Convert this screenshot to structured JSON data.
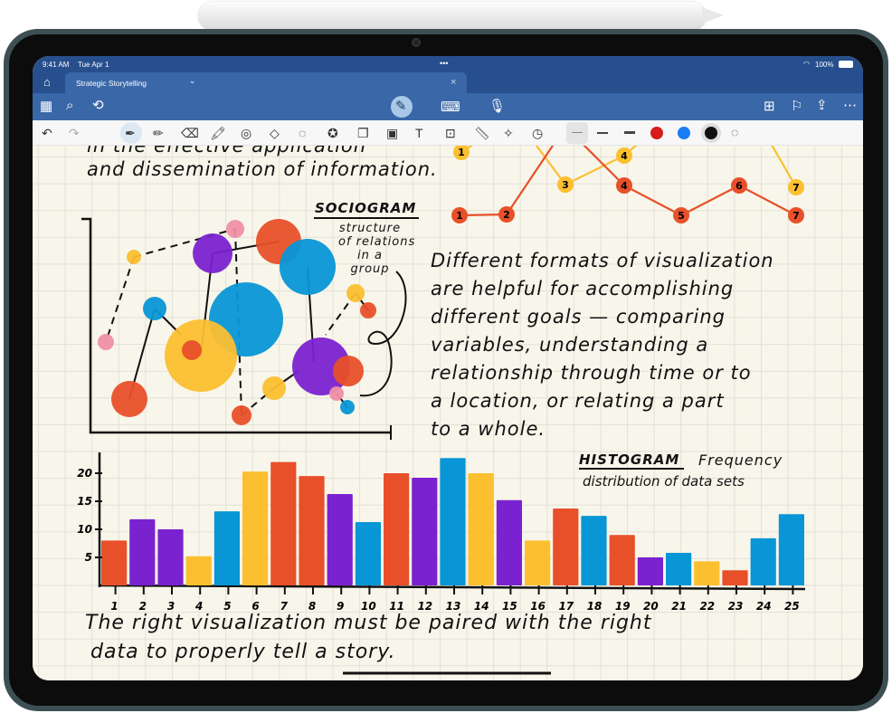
{
  "status": {
    "time": "9:41 AM",
    "date": "Tue Apr 1",
    "battery": "100%",
    "dots": "•••"
  },
  "tab": {
    "title": "Strategic Storytelling",
    "chevron": "⌄",
    "close": "×"
  },
  "toolbar": {
    "left_icons": [
      "grid-icon",
      "search-icon",
      "lasso-shapes-icon"
    ],
    "center_icons": [
      "draw-pen-icon",
      "keyboard-icon",
      "microphone-icon"
    ],
    "right_icons": [
      "new-page-icon",
      "bookmark-icon",
      "share-icon",
      "more-icon"
    ]
  },
  "drawtools": {
    "tools": [
      "pen",
      "pencil",
      "eraser",
      "highlighter",
      "stamp",
      "shapes",
      "lasso",
      "sticker",
      "pages",
      "image",
      "text-box",
      "image-insert",
      "ruler",
      "magic-pen",
      "history"
    ],
    "colors": {
      "red": "#d81b1b",
      "blue": "#1a7cf2",
      "black": "#111111"
    },
    "active_color": "black"
  },
  "note": {
    "intro_lines": [
      "in the effective application",
      "and dissemination of information."
    ],
    "sociogram_title": "SOCIOGRAM",
    "sociogram_caption": [
      "structure",
      "of relations",
      "in a",
      "group"
    ],
    "paragraph": [
      "Different formats of visualization",
      "are helpful for accomplishing",
      "different goals — comparing",
      "variables, understanding a",
      "relationship through time or to",
      "a location, or relating a part",
      "to a whole."
    ],
    "histogram_title": "HISTOGRAM",
    "histogram_caption": [
      "Frequency",
      "distribution of data sets"
    ],
    "closing": [
      "The right visualization must be paired with the right",
      "data to properly tell a story."
    ],
    "line_chart": {
      "red_labels": [
        "1",
        "2",
        "4",
        "5",
        "6",
        "7"
      ],
      "yellow_labels": [
        "1",
        "3",
        "4",
        "7"
      ]
    }
  },
  "chart_data": {
    "type": "bar",
    "title": "HISTOGRAM",
    "categories": [
      "1",
      "2",
      "3",
      "4",
      "5",
      "6",
      "7",
      "8",
      "9",
      "10",
      "11",
      "12",
      "13",
      "14",
      "15",
      "16",
      "17",
      "18",
      "19",
      "20",
      "21",
      "22",
      "23",
      "24",
      "25"
    ],
    "values": [
      8,
      11.8,
      10,
      5.2,
      13.2,
      20.3,
      22,
      19.5,
      16.3,
      11.3,
      20,
      19.2,
      22.7,
      20,
      15.2,
      8,
      13.7,
      12.4,
      9,
      5,
      5.8,
      4.3,
      2.7,
      8.4,
      12.7
    ],
    "bar_colors": [
      "#e8502a",
      "#7b22d0",
      "#7b22d0",
      "#fbbf30",
      "#0896d6",
      "#fbbf30",
      "#e8502a",
      "#e8502a",
      "#7b22d0",
      "#0896d6",
      "#e8502a",
      "#7b22d0",
      "#0896d6",
      "#fbbf30",
      "#7b22d0",
      "#fbbf30",
      "#e8502a",
      "#0896d6",
      "#e8502a",
      "#7b22d0",
      "#0896d6",
      "#fbbf30",
      "#e8502a",
      "#0896d6",
      "#0896d6"
    ],
    "yticks": [
      "5",
      "10",
      "15",
      "20"
    ],
    "ylim": [
      0,
      24
    ]
  }
}
